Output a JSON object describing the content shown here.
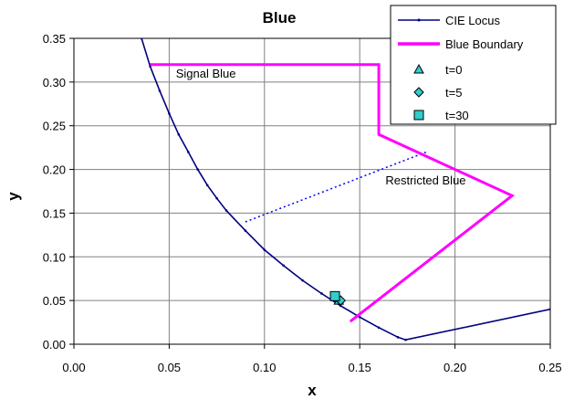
{
  "chart_data": {
    "type": "scatter",
    "title": "Blue",
    "xlabel": "x",
    "ylabel": "y",
    "xlim": [
      0.0,
      0.25
    ],
    "ylim": [
      0.0,
      0.35
    ],
    "xticks": [
      "0.00",
      "0.05",
      "0.10",
      "0.15",
      "0.20",
      "0.25"
    ],
    "yticks": [
      "0.00",
      "0.05",
      "0.10",
      "0.15",
      "0.20",
      "0.25",
      "0.30",
      "0.35"
    ],
    "grid": true,
    "legend_position": "top-right",
    "colors": {
      "locus": "#000080",
      "boundary": "#ff00ff",
      "marker_fill": "#33cccc"
    },
    "series": [
      {
        "name": "CIE Locus",
        "style": "line-with-small-markers",
        "points": [
          [
            0.0355,
            0.35
          ],
          [
            0.04,
            0.318
          ],
          [
            0.045,
            0.29
          ],
          [
            0.05,
            0.264
          ],
          [
            0.055,
            0.24
          ],
          [
            0.06,
            0.22
          ],
          [
            0.065,
            0.2
          ],
          [
            0.07,
            0.182
          ],
          [
            0.075,
            0.167
          ],
          [
            0.08,
            0.153
          ],
          [
            0.09,
            0.13
          ],
          [
            0.1,
            0.108
          ],
          [
            0.11,
            0.09
          ],
          [
            0.12,
            0.073
          ],
          [
            0.13,
            0.058
          ],
          [
            0.14,
            0.044
          ],
          [
            0.15,
            0.031
          ],
          [
            0.16,
            0.019
          ],
          [
            0.17,
            0.008
          ],
          [
            0.1741,
            0.005
          ],
          [
            0.25,
            0.04
          ]
        ]
      },
      {
        "name": "Blue Boundary",
        "style": "line",
        "points": [
          [
            0.04,
            0.32
          ],
          [
            0.16,
            0.32
          ],
          [
            0.16,
            0.24
          ],
          [
            0.23,
            0.17
          ],
          [
            0.145,
            0.026
          ]
        ]
      },
      {
        "name": "t=0",
        "style": "triangle",
        "points": [
          [
            0.139,
            0.05
          ]
        ]
      },
      {
        "name": "t=5",
        "style": "diamond",
        "points": [
          [
            0.14,
            0.05
          ]
        ]
      },
      {
        "name": "t=30",
        "style": "square",
        "points": [
          [
            0.137,
            0.055
          ]
        ]
      }
    ],
    "dotted_line": {
      "points": [
        [
          0.09,
          0.14
        ],
        [
          0.185,
          0.22
        ]
      ]
    },
    "annotations": [
      {
        "text": "Signal Blue",
        "x": 0.0535,
        "y": 0.305
      },
      {
        "text": "Restricted Blue",
        "x": 0.1635,
        "y": 0.183
      }
    ]
  }
}
